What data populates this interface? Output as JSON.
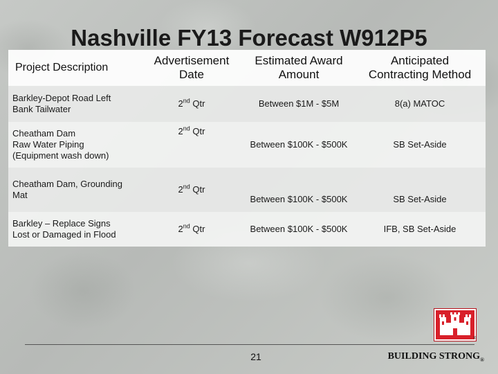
{
  "slide": {
    "title": "Nashville FY13 Forecast W912P5",
    "page_number": "21",
    "tagline": "BUILDING STRONG",
    "tagline_mark": "®",
    "logo_mark": "®"
  },
  "table": {
    "headers": {
      "description": "Project Description",
      "advertisement_line1": "Advertisement",
      "advertisement_line2": "Date",
      "award_line1": "Estimated Award",
      "award_line2": "Amount",
      "method_line1": "Anticipated",
      "method_line2": "Contracting Method"
    },
    "rows": [
      {
        "desc_line1": "Barkley-Depot Road Left",
        "desc_line2": "Bank Tailwater",
        "desc_line3": "",
        "date_num": "2",
        "date_sup": "nd",
        "date_unit": " Qtr",
        "amount": "Between $1M - $5M",
        "method": "8(a) MATOC"
      },
      {
        "desc_line1": "Cheatham Dam",
        "desc_line2": "Raw Water Piping",
        "desc_line3": "(Equipment wash down)",
        "date_num": "2",
        "date_sup": "nd",
        "date_unit": " Qtr",
        "amount": "Between $100K - $500K",
        "method": "SB Set-Aside"
      },
      {
        "desc_line1": "Cheatham Dam, Grounding",
        "desc_line2": "Mat",
        "desc_line3": "",
        "date_num": "2",
        "date_sup": "nd",
        "date_unit": " Qtr",
        "amount": "Between $100K - $500K",
        "method": "SB Set-Aside"
      },
      {
        "desc_line1": "Barkley – Replace Signs",
        "desc_line2": "Lost or Damaged in Flood",
        "desc_line3": "",
        "date_num": "2",
        "date_sup": "nd",
        "date_unit": " Qtr",
        "amount": "Between $100K - $500K",
        "method": "IFB, SB Set-Aside"
      }
    ]
  },
  "colors": {
    "logo_red": "#d8202a",
    "title_text": "#1a1a1a"
  },
  "icons": {
    "logo": "usace-castle-icon"
  }
}
